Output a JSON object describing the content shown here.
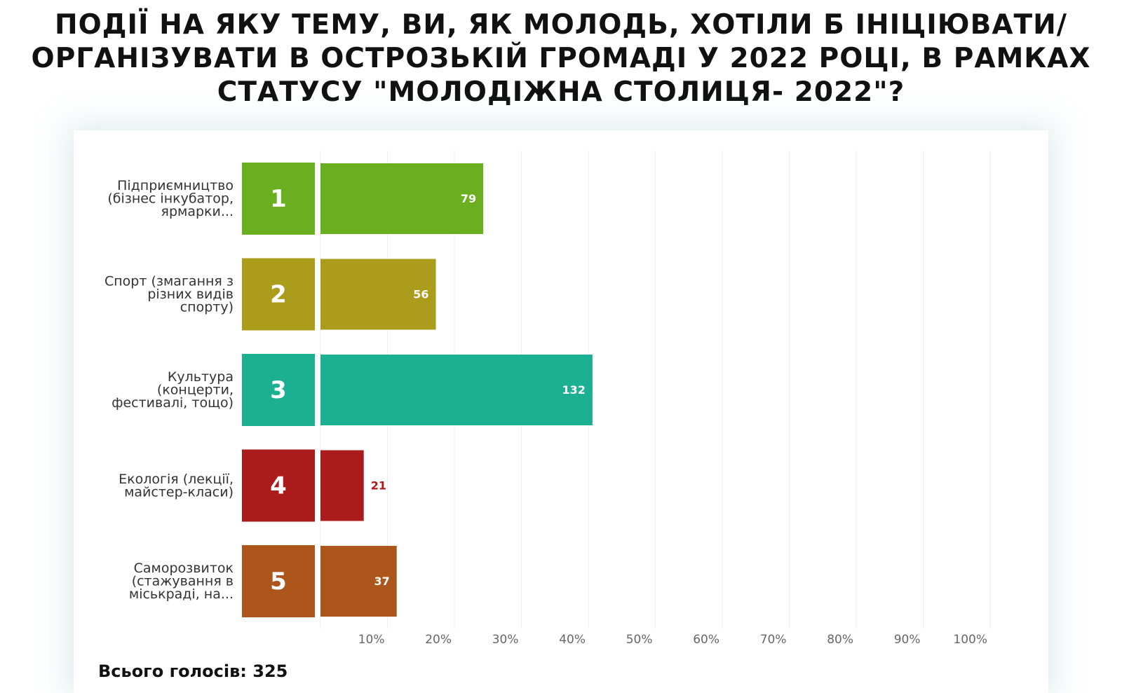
{
  "title_lines": [
    "ПОДІЇ НА ЯКУ ТЕМУ, ВИ, ЯК МОЛОДЬ, ХОТІЛИ Б ІНІЦІЮВАТИ/",
    "ОРГАНІЗУВАТИ В ОСТРОЗЬКІЙ ГРОМАДІ У 2022 РОЦІ, В РАМКАХ",
    "СТАТУСУ \"МОЛОДІЖНА СТОЛИЦЯ- 2022\"?"
  ],
  "total": {
    "label": "Всього голосів: 325"
  },
  "chart_data": {
    "type": "bar",
    "orientation": "horizontal",
    "title": "ПОДІЇ НА ЯКУ ТЕМУ, ВИ, ЯК МОЛОДЬ, ХОТІЛИ Б ІНІЦІЮВАТИ/ ОРГАНІЗУВАТИ В ОСТРОЗЬКІЙ ГРОМАДІ У 2022 РОЦІ, В РАМКАХ СТАТУСУ \"МОЛОДІЖНА СТОЛИЦЯ- 2022\"?",
    "total_votes": 325,
    "categories": [
      {
        "rank": "1",
        "label_lines": [
          "Підприємництво",
          "(бізнес інкубатор,",
          "ярмарки..."
        ],
        "value": 79,
        "color": "#6aaf1f"
      },
      {
        "rank": "2",
        "label_lines": [
          "Спорт (змагання з",
          "різних видів",
          "спорту)"
        ],
        "value": 56,
        "color": "#ab9c1b"
      },
      {
        "rank": "3",
        "label_lines": [
          "Культура",
          "(концерти,",
          "фестивалі, тощо)"
        ],
        "value": 132,
        "color": "#1bb092"
      },
      {
        "rank": "4",
        "label_lines": [
          "Екологія (лекції,",
          "майстер-класи)"
        ],
        "value": 21,
        "color": "#ac1b1b"
      },
      {
        "rank": "5",
        "label_lines": [
          "Саморозвиток",
          "(стажування в",
          "міськраді, на..."
        ],
        "value": 37,
        "color": "#ac561b"
      }
    ],
    "x_axis": {
      "unit": "percent",
      "range": [
        0,
        100
      ],
      "ticks": [
        "10%",
        "20%",
        "30%",
        "40%",
        "50%",
        "60%",
        "70%",
        "80%",
        "90%",
        "100%"
      ]
    },
    "grid": true,
    "legend": "none"
  }
}
